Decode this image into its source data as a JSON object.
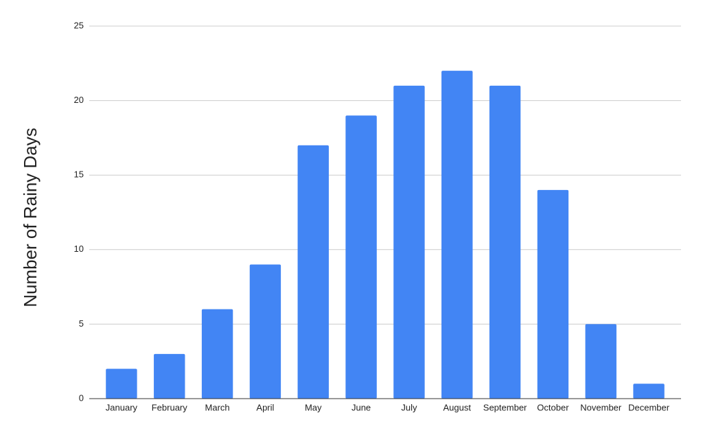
{
  "chart_data": {
    "type": "bar",
    "y_label": "Number of Rainy Days",
    "categories": [
      "January",
      "February",
      "March",
      "April",
      "May",
      "June",
      "July",
      "August",
      "September",
      "October",
      "November",
      "December"
    ],
    "values": [
      2,
      3,
      6,
      9,
      17,
      19,
      21,
      22,
      21,
      14,
      5,
      1
    ],
    "color": "#4285f4",
    "ylim": [
      0,
      25
    ],
    "yticks": [
      0,
      5,
      10,
      15,
      20,
      25
    ],
    "grid": true
  }
}
